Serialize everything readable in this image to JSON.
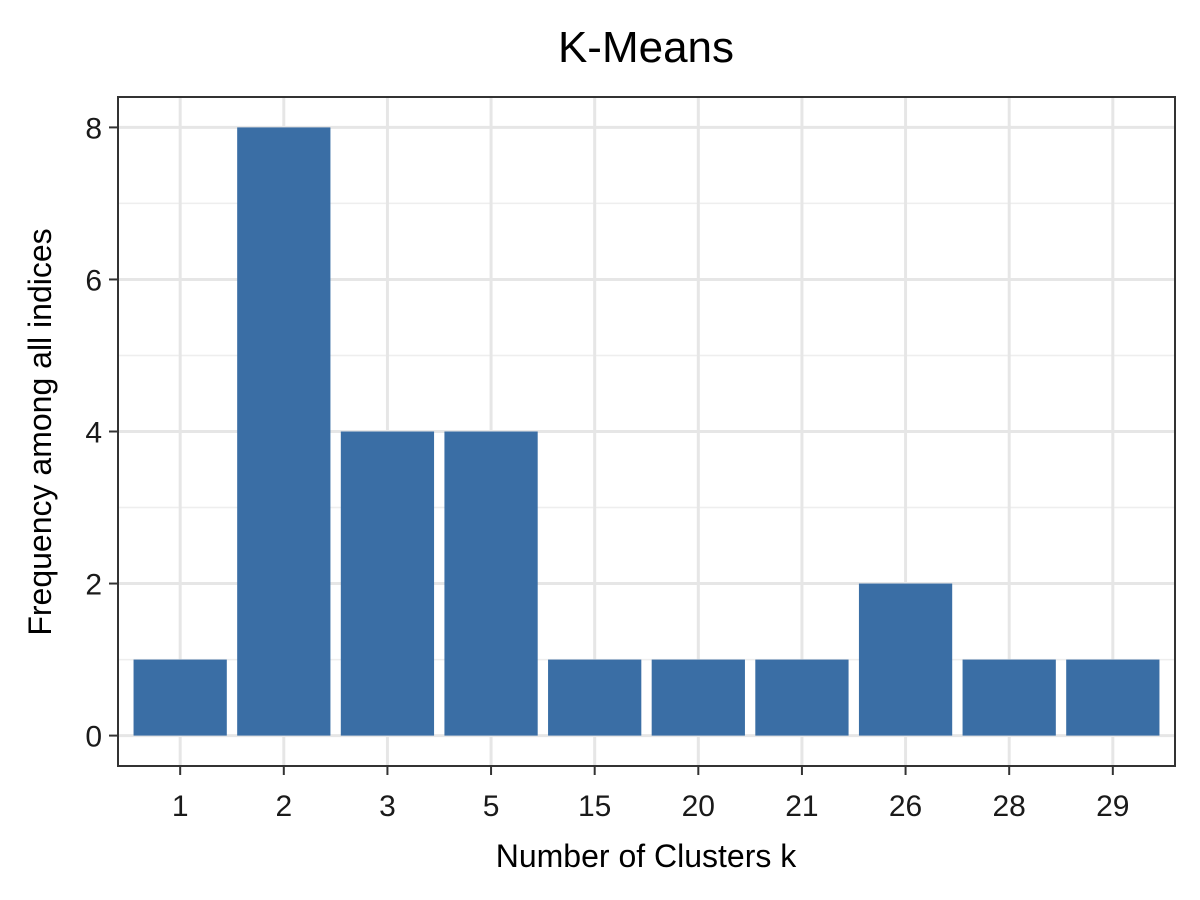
{
  "chart_data": {
    "type": "bar",
    "title": "K-Means",
    "xlabel": "Number of Clusters k",
    "ylabel": "Frequency among all indices",
    "categories": [
      "1",
      "2",
      "3",
      "5",
      "15",
      "20",
      "21",
      "26",
      "28",
      "29"
    ],
    "values": [
      1,
      8,
      4,
      4,
      1,
      1,
      1,
      2,
      1,
      1
    ],
    "yticks": [
      "0",
      "2",
      "4",
      "6",
      "8"
    ],
    "ylim": [
      -0.4,
      8.4
    ],
    "grid": true,
    "bar_color": "#3A6EA5"
  }
}
